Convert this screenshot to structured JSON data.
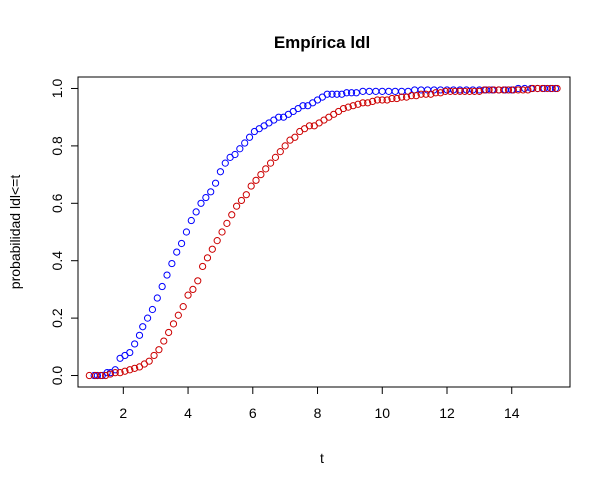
{
  "chart_data": {
    "type": "scatter",
    "title": "Empírica ldl",
    "xlabel": "t",
    "ylabel": "probabilidad ldl<=t",
    "xlim": [
      0.6,
      15.8
    ],
    "ylim": [
      -0.04,
      1.04
    ],
    "x_ticks": [
      "2",
      "4",
      "6",
      "8",
      "10",
      "12",
      "14"
    ],
    "y_ticks": [
      "0.0",
      "0.2",
      "0.4",
      "0.6",
      "0.8",
      "1.0"
    ],
    "marker": "open-circle",
    "grid": false,
    "series": [
      {
        "color": "#0000ff",
        "points": [
          [
            1.1,
            0.0
          ],
          [
            1.2,
            0.0
          ],
          [
            1.35,
            0.0
          ],
          [
            1.5,
            0.01
          ],
          [
            1.6,
            0.01
          ],
          [
            1.75,
            0.02
          ],
          [
            1.9,
            0.06
          ],
          [
            2.05,
            0.07
          ],
          [
            2.2,
            0.08
          ],
          [
            2.35,
            0.11
          ],
          [
            2.5,
            0.14
          ],
          [
            2.6,
            0.17
          ],
          [
            2.75,
            0.2
          ],
          [
            2.9,
            0.23
          ],
          [
            3.05,
            0.27
          ],
          [
            3.2,
            0.31
          ],
          [
            3.35,
            0.35
          ],
          [
            3.5,
            0.39
          ],
          [
            3.65,
            0.43
          ],
          [
            3.8,
            0.46
          ],
          [
            3.95,
            0.5
          ],
          [
            4.1,
            0.54
          ],
          [
            4.25,
            0.57
          ],
          [
            4.4,
            0.6
          ],
          [
            4.55,
            0.62
          ],
          [
            4.7,
            0.64
          ],
          [
            4.85,
            0.67
          ],
          [
            5.0,
            0.71
          ],
          [
            5.15,
            0.74
          ],
          [
            5.3,
            0.76
          ],
          [
            5.45,
            0.77
          ],
          [
            5.6,
            0.79
          ],
          [
            5.75,
            0.81
          ],
          [
            5.9,
            0.83
          ],
          [
            6.05,
            0.85
          ],
          [
            6.2,
            0.86
          ],
          [
            6.35,
            0.87
          ],
          [
            6.5,
            0.88
          ],
          [
            6.65,
            0.89
          ],
          [
            6.8,
            0.9
          ],
          [
            6.95,
            0.9
          ],
          [
            7.1,
            0.91
          ],
          [
            7.25,
            0.92
          ],
          [
            7.4,
            0.93
          ],
          [
            7.55,
            0.94
          ],
          [
            7.7,
            0.94
          ],
          [
            7.85,
            0.95
          ],
          [
            8.0,
            0.96
          ],
          [
            8.15,
            0.97
          ],
          [
            8.3,
            0.98
          ],
          [
            8.45,
            0.98
          ],
          [
            8.6,
            0.98
          ],
          [
            8.75,
            0.98
          ],
          [
            8.9,
            0.985
          ],
          [
            9.05,
            0.985
          ],
          [
            9.2,
            0.985
          ],
          [
            9.4,
            0.99
          ],
          [
            9.6,
            0.99
          ],
          [
            9.8,
            0.99
          ],
          [
            10.0,
            0.99
          ],
          [
            10.2,
            0.99
          ],
          [
            10.4,
            0.99
          ],
          [
            10.6,
            0.99
          ],
          [
            10.8,
            0.99
          ],
          [
            11.0,
            0.995
          ],
          [
            11.2,
            0.995
          ],
          [
            11.4,
            0.995
          ],
          [
            11.6,
            0.995
          ],
          [
            11.8,
            0.995
          ],
          [
            12.0,
            0.995
          ],
          [
            12.2,
            0.995
          ],
          [
            12.4,
            0.995
          ],
          [
            12.6,
            0.995
          ],
          [
            12.8,
            0.995
          ],
          [
            13.0,
            0.995
          ],
          [
            13.2,
            0.995
          ],
          [
            13.4,
            0.995
          ],
          [
            13.6,
            0.995
          ],
          [
            13.8,
            0.995
          ],
          [
            14.0,
            0.995
          ],
          [
            14.2,
            1.0
          ],
          [
            14.4,
            1.0
          ],
          [
            14.6,
            1.0
          ],
          [
            14.8,
            1.0
          ],
          [
            15.0,
            1.0
          ],
          [
            15.2,
            1.0
          ],
          [
            15.35,
            1.0
          ]
        ]
      },
      {
        "color": "#cc0000",
        "points": [
          [
            0.95,
            0.0
          ],
          [
            1.15,
            0.0
          ],
          [
            1.3,
            0.0
          ],
          [
            1.45,
            0.0
          ],
          [
            1.6,
            0.005
          ],
          [
            1.75,
            0.01
          ],
          [
            1.9,
            0.01
          ],
          [
            2.05,
            0.015
          ],
          [
            2.2,
            0.02
          ],
          [
            2.35,
            0.025
          ],
          [
            2.5,
            0.03
          ],
          [
            2.65,
            0.04
          ],
          [
            2.8,
            0.05
          ],
          [
            2.95,
            0.07
          ],
          [
            3.1,
            0.09
          ],
          [
            3.25,
            0.12
          ],
          [
            3.4,
            0.15
          ],
          [
            3.55,
            0.18
          ],
          [
            3.7,
            0.21
          ],
          [
            3.85,
            0.24
          ],
          [
            4.0,
            0.28
          ],
          [
            4.15,
            0.3
          ],
          [
            4.3,
            0.33
          ],
          [
            4.45,
            0.38
          ],
          [
            4.6,
            0.41
          ],
          [
            4.75,
            0.44
          ],
          [
            4.9,
            0.47
          ],
          [
            5.05,
            0.5
          ],
          [
            5.2,
            0.53
          ],
          [
            5.35,
            0.56
          ],
          [
            5.5,
            0.59
          ],
          [
            5.65,
            0.61
          ],
          [
            5.8,
            0.63
          ],
          [
            5.95,
            0.66
          ],
          [
            6.1,
            0.68
          ],
          [
            6.25,
            0.7
          ],
          [
            6.4,
            0.72
          ],
          [
            6.55,
            0.74
          ],
          [
            6.7,
            0.76
          ],
          [
            6.85,
            0.78
          ],
          [
            7.0,
            0.8
          ],
          [
            7.15,
            0.82
          ],
          [
            7.3,
            0.83
          ],
          [
            7.45,
            0.85
          ],
          [
            7.6,
            0.86
          ],
          [
            7.75,
            0.87
          ],
          [
            7.9,
            0.87
          ],
          [
            8.05,
            0.88
          ],
          [
            8.2,
            0.89
          ],
          [
            8.35,
            0.9
          ],
          [
            8.5,
            0.91
          ],
          [
            8.65,
            0.92
          ],
          [
            8.8,
            0.93
          ],
          [
            8.95,
            0.935
          ],
          [
            9.1,
            0.94
          ],
          [
            9.25,
            0.945
          ],
          [
            9.4,
            0.95
          ],
          [
            9.55,
            0.95
          ],
          [
            9.7,
            0.955
          ],
          [
            9.85,
            0.96
          ],
          [
            10.0,
            0.96
          ],
          [
            10.15,
            0.96
          ],
          [
            10.3,
            0.965
          ],
          [
            10.45,
            0.965
          ],
          [
            10.6,
            0.97
          ],
          [
            10.75,
            0.97
          ],
          [
            10.9,
            0.975
          ],
          [
            11.05,
            0.975
          ],
          [
            11.2,
            0.98
          ],
          [
            11.35,
            0.98
          ],
          [
            11.5,
            0.98
          ],
          [
            11.65,
            0.985
          ],
          [
            11.8,
            0.985
          ],
          [
            11.95,
            0.99
          ],
          [
            12.1,
            0.99
          ],
          [
            12.25,
            0.99
          ],
          [
            12.4,
            0.99
          ],
          [
            12.55,
            0.99
          ],
          [
            12.7,
            0.99
          ],
          [
            12.85,
            0.99
          ],
          [
            13.0,
            0.99
          ],
          [
            13.15,
            0.995
          ],
          [
            13.3,
            0.995
          ],
          [
            13.45,
            0.995
          ],
          [
            13.6,
            0.995
          ],
          [
            13.75,
            0.995
          ],
          [
            13.9,
            0.995
          ],
          [
            14.05,
            0.995
          ],
          [
            14.2,
            0.995
          ],
          [
            14.35,
            0.995
          ],
          [
            14.5,
            0.995
          ],
          [
            14.65,
            1.0
          ],
          [
            14.8,
            1.0
          ],
          [
            14.95,
            1.0
          ],
          [
            15.1,
            1.0
          ],
          [
            15.25,
            1.0
          ],
          [
            15.4,
            1.0
          ]
        ]
      }
    ]
  }
}
